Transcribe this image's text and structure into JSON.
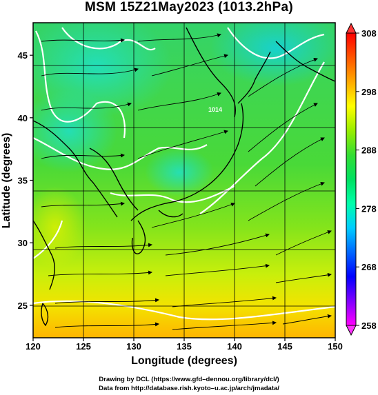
{
  "title": "MSM 15Z21May2023 (1013.2hPa)",
  "x_axis": {
    "label": "Longitude (degrees)",
    "ticks": [
      "120",
      "125",
      "130",
      "135",
      "140",
      "145",
      "150"
    ],
    "range": [
      120,
      150
    ]
  },
  "y_axis": {
    "label": "Latitude  (degrees)",
    "ticks": [
      "25",
      "30",
      "35",
      "40",
      "45"
    ],
    "range": [
      22.4,
      47.6
    ]
  },
  "colorbar": {
    "ticks": [
      "308",
      "298",
      "288",
      "278",
      "268",
      "258"
    ],
    "range": [
      258,
      308
    ],
    "colors": [
      "#ff00ff",
      "#8000ff",
      "#0000ff",
      "#0066ff",
      "#00ccff",
      "#00ffaa",
      "#00e060",
      "#33dd33",
      "#99ee00",
      "#ffff00",
      "#ffaa00",
      "#ff5500",
      "#ff0000"
    ]
  },
  "contour_label": "1014",
  "credits": {
    "line1": "Drawing by DCL (https://www.gfd–dennou.org/library/dcl/)",
    "line2": "Data from http://database.rish.kyoto–u.ac.jp/arch/jmadata/"
  }
}
